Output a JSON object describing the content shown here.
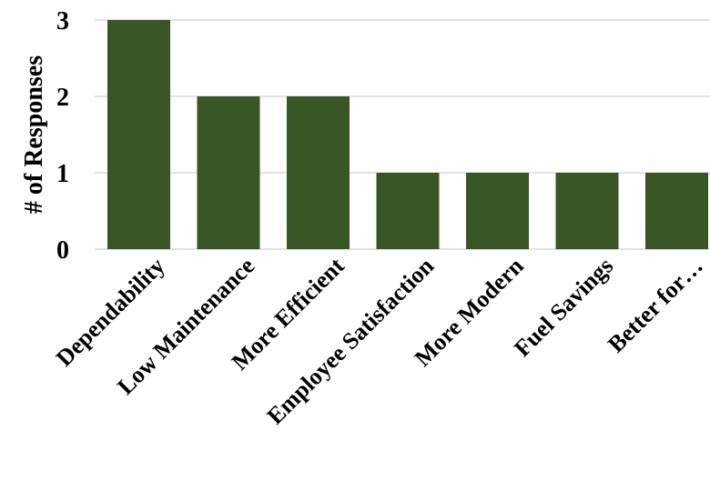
{
  "chart_data": {
    "type": "bar",
    "categories": [
      "Dependability",
      "Low Maintenance",
      "More Efficient",
      "Employee Satisfaction",
      "More Modern",
      "Fuel Savings",
      "Better for…"
    ],
    "values": [
      3,
      2,
      2,
      1,
      1,
      1,
      1
    ],
    "title": "",
    "xlabel": "",
    "ylabel": "# of Responses",
    "ylim": [
      0,
      3
    ],
    "yticks": [
      0,
      1,
      2,
      3
    ],
    "grid": true,
    "legend": "none",
    "bar_color": "#375623"
  }
}
